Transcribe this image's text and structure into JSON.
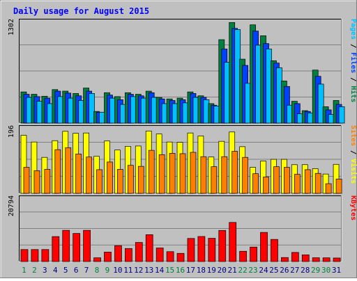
{
  "chart_data": {
    "type": "bar",
    "title": "Daily usage for August 2015",
    "days": [
      "1",
      "2",
      "3",
      "4",
      "5",
      "6",
      "7",
      "8",
      "9",
      "10",
      "11",
      "12",
      "13",
      "14",
      "15",
      "16",
      "17",
      "18",
      "19",
      "20",
      "21",
      "22",
      "23",
      "24",
      "25",
      "26",
      "27",
      "28",
      "29",
      "30",
      "31"
    ],
    "weekend_days": [
      1,
      2,
      8,
      9,
      15,
      16,
      22,
      23,
      29,
      30
    ],
    "panels": [
      {
        "max_label": "1302",
        "ymax": 1302,
        "ylabel_parts": [
          {
            "text": "Pages",
            "color": "#00c0ff"
          },
          {
            "text": " / ",
            "color": "#000000"
          },
          {
            "text": "Files",
            "color": "#0040ff"
          },
          {
            "text": " / ",
            "color": "#000000"
          },
          {
            "text": "Hits",
            "color": "#008040"
          }
        ],
        "series": [
          {
            "name": "Hits",
            "color": "#008040",
            "values": [
              400,
              370,
              345,
              430,
              410,
              380,
              450,
              150,
              390,
              340,
              390,
              370,
              410,
              330,
              310,
              320,
              400,
              350,
              250,
              1070,
              1290,
              820,
              1260,
              1120,
              800,
              540,
              280,
              160,
              680,
              210,
              290
            ]
          },
          {
            "name": "Files",
            "color": "#0040ff",
            "values": [
              370,
              340,
              320,
              410,
              385,
              350,
              410,
              140,
              360,
              300,
              370,
              350,
              390,
              310,
              290,
              300,
              380,
              330,
              230,
              950,
              1215,
              740,
              1180,
              1020,
              770,
              470,
              250,
              150,
              600,
              170,
              240
            ]
          },
          {
            "name": "Pages",
            "color": "#00c0ff",
            "values": [
              330,
              280,
              250,
              340,
              320,
              290,
              380,
              140,
              320,
              240,
              340,
              320,
              330,
              250,
              250,
              260,
              330,
              300,
              220,
              780,
              1200,
              510,
              1000,
              950,
              710,
              230,
              120,
              130,
              500,
              110,
              210
            ]
          }
        ]
      },
      {
        "max_label": "196",
        "ymax": 196,
        "ylabel_parts": [
          {
            "text": "Sites",
            "color": "#ff8000"
          },
          {
            "text": " / ",
            "color": "#000000"
          },
          {
            "text": "Visits",
            "color": "#ffff00"
          }
        ],
        "series": [
          {
            "name": "Visits",
            "color": "#ffff00",
            "values": [
              174,
              154,
              108,
              158,
              186,
              180,
              181,
              111,
              157,
              130,
              141,
              142,
              187,
              178,
              154,
              153,
              181,
              172,
              109,
              156,
              184,
              140,
              78,
              97,
              102,
              102,
              86,
              86,
              74,
              58,
              87
            ]
          },
          {
            "name": "Sites",
            "color": "#ff8000",
            "values": [
              78,
              68,
              72,
              131,
              137,
              118,
              109,
              71,
              94,
              72,
              84,
              81,
              129,
              116,
              120,
              119,
              123,
              110,
              80,
              110,
              126,
              108,
              59,
              49,
              80,
              78,
              57,
              71,
              60,
              29,
              43
            ]
          }
        ]
      },
      {
        "max_label": "20794",
        "ymax": 20794,
        "ylabel_parts": [
          {
            "text": "KBytes",
            "color": "#ff0000"
          }
        ],
        "series": [
          {
            "name": "KBytes",
            "color": "#ff0000",
            "values": [
              3940,
              3940,
              3940,
              8200,
              10250,
              9230,
              10250,
              1230,
              3100,
              5220,
              4280,
              6270,
              8820,
              4450,
              3250,
              2690,
              7590,
              8230,
              7640,
              10220,
              12850,
              3370,
              4750,
              9570,
              7270,
              1320,
              2990,
              2200,
              1240,
              1220,
              1160
            ]
          }
        ]
      }
    ]
  }
}
